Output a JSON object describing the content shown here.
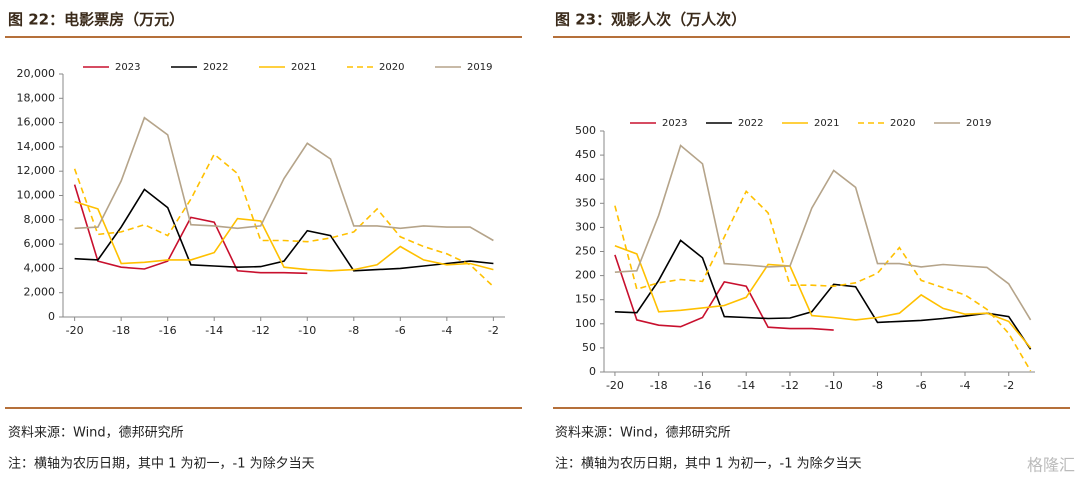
{
  "chart_data": [
    {
      "type": "line",
      "title": "图 22：电影票房（万元）",
      "source": "资料来源：Wind，德邦研究所",
      "note": "注：横轴为农历日期，其中 1 为初一，-1 为除夕当天",
      "x": [
        -20,
        -19,
        -18,
        -17,
        -16,
        -15,
        -14,
        -13,
        -12,
        -11,
        -10,
        -9,
        -8,
        -7,
        -6,
        -5,
        -4,
        -3,
        -2
      ],
      "xlim": [
        -20.5,
        -1.5
      ],
      "xticks": [
        -20,
        -18,
        -16,
        -14,
        -12,
        -10,
        -8,
        -6,
        -4,
        -2
      ],
      "ylim": [
        0,
        20000
      ],
      "yticks": [
        0,
        {
          "value": 2000,
          "label": "2,000"
        },
        {
          "value": 4000,
          "label": "4,000"
        },
        {
          "value": 6000,
          "label": "6,000"
        },
        {
          "value": 8000,
          "label": "8,000"
        },
        {
          "value": 10000,
          "label": "10,000"
        },
        {
          "value": 12000,
          "label": "12,000"
        },
        {
          "value": 14000,
          "label": "14,000"
        },
        {
          "value": 16000,
          "label": "16,000"
        },
        {
          "value": 18000,
          "label": "18,000"
        },
        {
          "value": 20000,
          "label": "20,000"
        }
      ],
      "grid": false,
      "legend": "top",
      "series": [
        {
          "name": "2023",
          "color": "#c8102e",
          "dashed": false,
          "values": [
            10900,
            4600,
            4100,
            3950,
            4600,
            8200,
            7800,
            3800,
            3650,
            3650,
            3600,
            null,
            null,
            null,
            null,
            null,
            null,
            null,
            null
          ]
        },
        {
          "name": "2022",
          "color": "#000000",
          "dashed": false,
          "values": [
            4800,
            4700,
            7400,
            10500,
            9000,
            4300,
            4200,
            4100,
            4150,
            4600,
            7100,
            6700,
            3800,
            3900,
            4000,
            4200,
            4400,
            4600,
            4400
          ]
        },
        {
          "name": "2021",
          "color": "#ffc000",
          "dashed": false,
          "values": [
            9500,
            8900,
            4400,
            4500,
            4700,
            4700,
            5300,
            8100,
            7900,
            4100,
            3900,
            3800,
            3900,
            4300,
            5800,
            4700,
            4300,
            4400,
            3900
          ]
        },
        {
          "name": "2020",
          "color": "#ffc000",
          "dashed": true,
          "values": [
            12200,
            6800,
            7000,
            7600,
            6700,
            9700,
            13400,
            11800,
            6300,
            6300,
            6200,
            6500,
            7000,
            8900,
            6600,
            5800,
            5200,
            4300,
            2500
          ]
        },
        {
          "name": "2019",
          "color": "#b5a48a",
          "dashed": false,
          "values": [
            7300,
            7400,
            11200,
            16400,
            15000,
            7600,
            7500,
            7300,
            7500,
            11400,
            14300,
            13000,
            7500,
            7500,
            7300,
            7500,
            7400,
            7400,
            6300
          ]
        }
      ]
    },
    {
      "type": "line",
      "title": "图 23：观影人次（万人次）",
      "source": "资料来源：Wind，德邦研究所",
      "note": "注：横轴为农历日期，其中 1 为初一，-1 为除夕当天",
      "x": [
        -20,
        -19,
        -18,
        -17,
        -16,
        -15,
        -14,
        -13,
        -12,
        -11,
        -10,
        -9,
        -8,
        -7,
        -6,
        -5,
        -4,
        -3,
        -2,
        -1
      ],
      "xlim": [
        -20.5,
        -0.8
      ],
      "xticks": [
        -20,
        -18,
        -16,
        -14,
        -12,
        -10,
        -8,
        -6,
        -4,
        -2
      ],
      "ylim": [
        0,
        500
      ],
      "yticks": [
        0,
        50,
        100,
        150,
        200,
        250,
        300,
        350,
        400,
        450,
        500
      ],
      "grid": false,
      "legend": "top",
      "series": [
        {
          "name": "2023",
          "color": "#c8102e",
          "dashed": false,
          "values": [
            243,
            108,
            97,
            94,
            113,
            187,
            178,
            93,
            90,
            90,
            87,
            null,
            null,
            null,
            null,
            null,
            null,
            null,
            null,
            null
          ]
        },
        {
          "name": "2022",
          "color": "#000000",
          "dashed": false,
          "values": [
            125,
            123,
            190,
            273,
            237,
            115,
            113,
            111,
            112,
            125,
            182,
            177,
            103,
            105,
            107,
            111,
            116,
            122,
            115,
            47
          ]
        },
        {
          "name": "2021",
          "color": "#ffc000",
          "dashed": false,
          "values": [
            262,
            245,
            125,
            128,
            133,
            138,
            155,
            223,
            220,
            117,
            113,
            108,
            113,
            122,
            160,
            132,
            120,
            122,
            105,
            50
          ]
        },
        {
          "name": "2020",
          "color": "#ffc000",
          "dashed": true,
          "values": [
            345,
            172,
            185,
            192,
            188,
            280,
            375,
            330,
            180,
            180,
            178,
            185,
            205,
            258,
            190,
            175,
            160,
            130,
            80,
            2
          ]
        },
        {
          "name": "2019",
          "color": "#b5a48a",
          "dashed": false,
          "values": [
            207,
            210,
            325,
            470,
            432,
            225,
            222,
            218,
            220,
            340,
            418,
            383,
            225,
            225,
            218,
            223,
            220,
            217,
            183,
            108
          ]
        }
      ]
    }
  ],
  "watermark": "格隆汇"
}
